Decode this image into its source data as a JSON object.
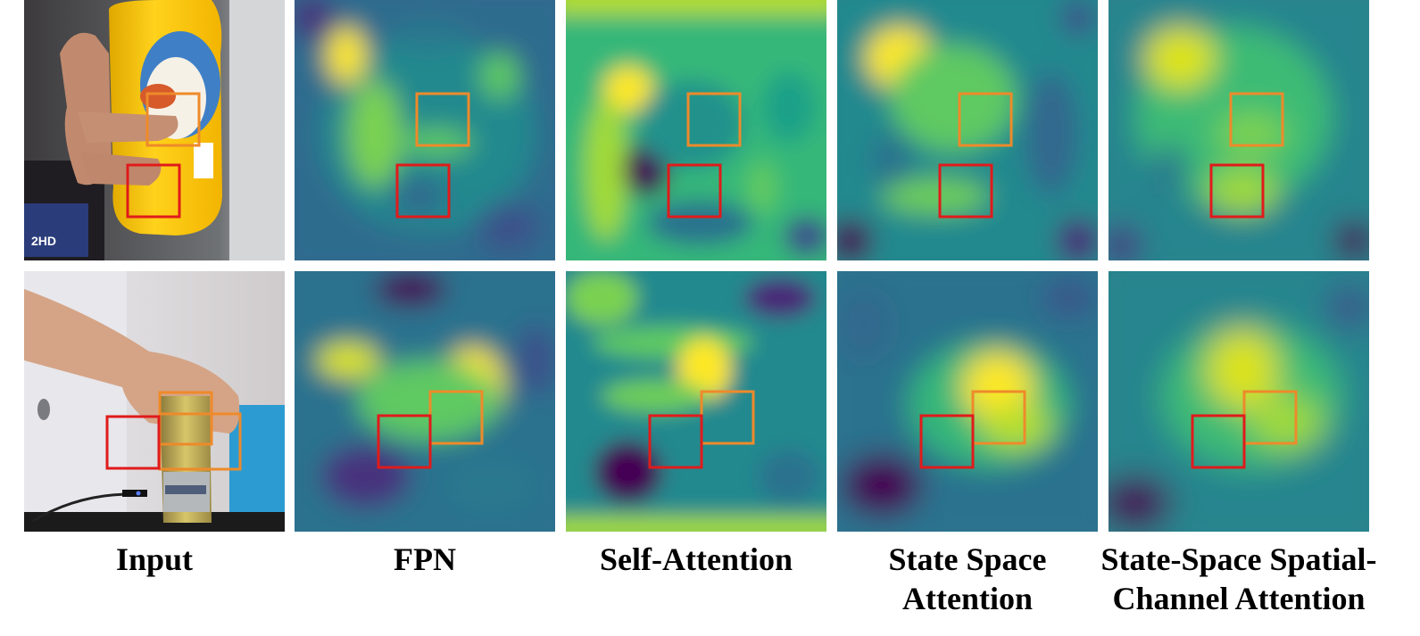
{
  "columns": [
    {
      "id": "input",
      "label_lines": [
        "Input"
      ]
    },
    {
      "id": "fpn",
      "label_lines": [
        "FPN"
      ]
    },
    {
      "id": "self-attention",
      "label_lines": [
        "Self-Attention"
      ]
    },
    {
      "id": "state-space-attention",
      "label_lines": [
        "State Space",
        "Attention"
      ]
    },
    {
      "id": "ssca",
      "label_lines": [
        "State-Space Spatial-",
        "Channel Attention"
      ]
    }
  ],
  "rows": [
    {
      "id": "row-1-bottle",
      "scene": "hand holding yellow bottle"
    },
    {
      "id": "row-2-can",
      "scene": "hand grasping metal can"
    }
  ],
  "box_colors": {
    "red": "#e01b1b",
    "orange": "#ee8a2a"
  },
  "heatmap_colormap": [
    "#440154",
    "#3b528b",
    "#21918c",
    "#5ec962",
    "#fde725"
  ]
}
